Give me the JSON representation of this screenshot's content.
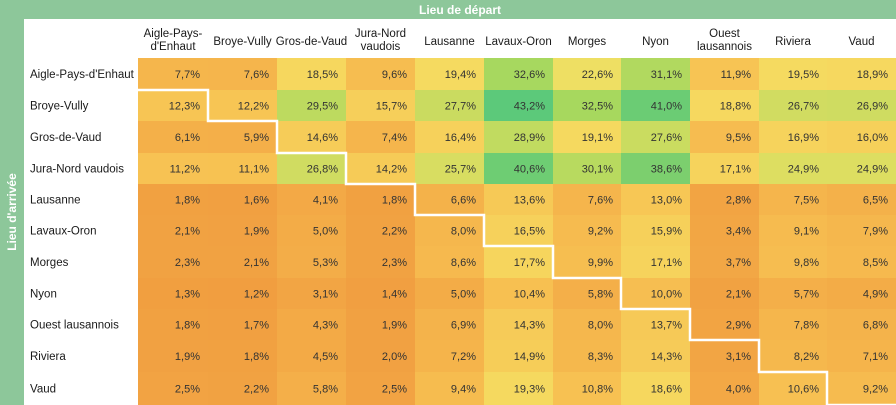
{
  "chart_data": {
    "type": "heatmap",
    "title": "",
    "xlabel": "Lieu de départ",
    "ylabel": "Lieu d'arrivée",
    "columns": [
      "Aigle-Pays-d'Enhaut",
      "Broye-Vully",
      "Gros-de-Vaud",
      "Jura-Nord vaudois",
      "Lausanne",
      "Lavaux-Oron",
      "Morges",
      "Nyon",
      "Ouest lausannois",
      "Riviera",
      "Vaud"
    ],
    "rows": [
      "Aigle-Pays-d'Enhaut",
      "Broye-Vully",
      "Gros-de-Vaud",
      "Jura-Nord vaudois",
      "Lausanne",
      "Lavaux-Oron",
      "Morges",
      "Nyon",
      "Ouest lausannois",
      "Riviera",
      "Vaud"
    ],
    "values": [
      [
        7.7,
        7.6,
        18.5,
        9.6,
        19.4,
        32.6,
        22.6,
        31.1,
        11.9,
        19.5,
        18.9
      ],
      [
        12.3,
        12.2,
        29.5,
        15.7,
        27.7,
        43.2,
        32.5,
        41.0,
        18.8,
        26.7,
        26.9
      ],
      [
        6.1,
        5.9,
        14.6,
        7.4,
        16.4,
        28.9,
        19.1,
        27.6,
        9.5,
        16.9,
        16.0
      ],
      [
        11.2,
        11.1,
        26.8,
        14.2,
        25.7,
        40.6,
        30.1,
        38.6,
        17.1,
        24.9,
        24.9
      ],
      [
        1.8,
        1.6,
        4.1,
        1.8,
        6.6,
        13.6,
        7.6,
        13.0,
        2.8,
        7.5,
        6.5
      ],
      [
        2.1,
        1.9,
        5.0,
        2.2,
        8.0,
        16.5,
        9.2,
        15.9,
        3.4,
        9.1,
        7.9
      ],
      [
        2.3,
        2.1,
        5.3,
        2.3,
        8.6,
        17.7,
        9.9,
        17.1,
        3.7,
        9.8,
        8.5
      ],
      [
        1.3,
        1.2,
        3.1,
        1.4,
        5.0,
        10.4,
        5.8,
        10.0,
        2.1,
        5.7,
        4.9
      ],
      [
        1.8,
        1.7,
        4.3,
        1.9,
        6.9,
        14.3,
        8.0,
        13.7,
        2.9,
        7.8,
        6.8
      ],
      [
        1.9,
        1.8,
        4.5,
        2.0,
        7.2,
        14.9,
        8.3,
        14.3,
        3.1,
        8.2,
        7.1
      ],
      [
        2.5,
        2.2,
        5.8,
        2.5,
        9.4,
        19.3,
        10.8,
        18.6,
        4.0,
        10.6,
        9.2
      ]
    ],
    "labels": [
      [
        "7,7%",
        "7,6%",
        "18,5%",
        "9,6%",
        "19,4%",
        "32,6%",
        "22,6%",
        "31,1%",
        "11,9%",
        "19,5%",
        "18,9%"
      ],
      [
        "12,3%",
        "12,2%",
        "29,5%",
        "15,7%",
        "27,7%",
        "43,2%",
        "32,5%",
        "41,0%",
        "18,8%",
        "26,7%",
        "26,9%"
      ],
      [
        "6,1%",
        "5,9%",
        "14,6%",
        "7,4%",
        "16,4%",
        "28,9%",
        "19,1%",
        "27,6%",
        "9,5%",
        "16,9%",
        "16,0%"
      ],
      [
        "11,2%",
        "11,1%",
        "26,8%",
        "14,2%",
        "25,7%",
        "40,6%",
        "30,1%",
        "38,6%",
        "17,1%",
        "24,9%",
        "24,9%"
      ],
      [
        "1,8%",
        "1,6%",
        "4,1%",
        "1,8%",
        "6,6%",
        "13,6%",
        "7,6%",
        "13,0%",
        "2,8%",
        "7,5%",
        "6,5%"
      ],
      [
        "2,1%",
        "1,9%",
        "5,0%",
        "2,2%",
        "8,0%",
        "16,5%",
        "9,2%",
        "15,9%",
        "3,4%",
        "9,1%",
        "7,9%"
      ],
      [
        "2,3%",
        "2,1%",
        "5,3%",
        "2,3%",
        "8,6%",
        "17,7%",
        "9,9%",
        "17,1%",
        "3,7%",
        "9,8%",
        "8,5%"
      ],
      [
        "1,3%",
        "1,2%",
        "3,1%",
        "1,4%",
        "5,0%",
        "10,4%",
        "5,8%",
        "10,0%",
        "2,1%",
        "5,7%",
        "4,9%"
      ],
      [
        "1,8%",
        "1,7%",
        "4,3%",
        "1,9%",
        "6,9%",
        "14,3%",
        "8,0%",
        "13,7%",
        "2,9%",
        "7,8%",
        "6,8%"
      ],
      [
        "1,9%",
        "1,8%",
        "4,5%",
        "2,0%",
        "7,2%",
        "14,9%",
        "8,3%",
        "14,3%",
        "3,1%",
        "8,2%",
        "7,1%"
      ],
      [
        "2,5%",
        "2,2%",
        "5,8%",
        "2,5%",
        "9,4%",
        "19,3%",
        "10,8%",
        "18,6%",
        "4,0%",
        "10,6%",
        "9,2%"
      ]
    ],
    "color_scale": [
      "#f09a3e",
      "#f7c152",
      "#f5e063",
      "#a8d85e",
      "#5cc97a"
    ],
    "color_range": [
      0,
      43.2
    ],
    "header_color": "#8dc79a",
    "legend": "none",
    "grid": false
  }
}
